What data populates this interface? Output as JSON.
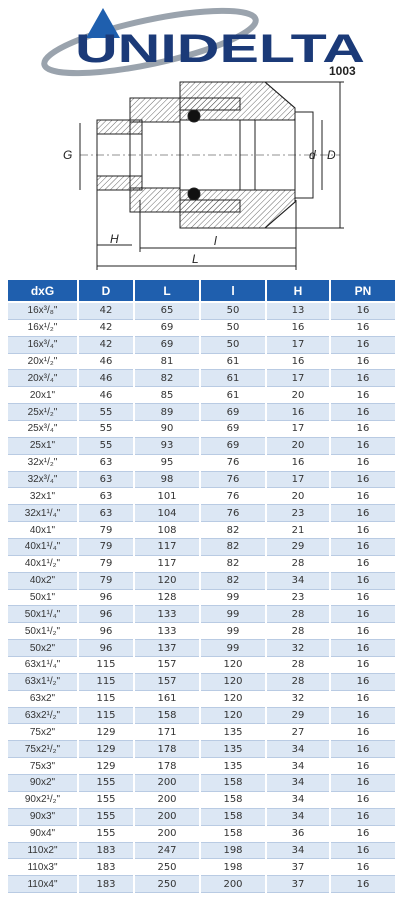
{
  "header": {
    "logo": "UNIDELTA",
    "code": "1003"
  },
  "drawing": {
    "labels": {
      "G": "G",
      "H": "H",
      "l": "l",
      "L": "L",
      "d": "d",
      "D": "D"
    }
  },
  "table": {
    "columns": [
      "dxG",
      "D",
      "L",
      "l",
      "H",
      "PN"
    ],
    "rows": [
      [
        "16x³/₈\"",
        "42",
        "65",
        "50",
        "13",
        "16"
      ],
      [
        "16x¹/₂\"",
        "42",
        "69",
        "50",
        "16",
        "16"
      ],
      [
        "16x³/₄\"",
        "42",
        "69",
        "50",
        "17",
        "16"
      ],
      [
        "20x¹/₂\"",
        "46",
        "81",
        "61",
        "16",
        "16"
      ],
      [
        "20x³/₄\"",
        "46",
        "82",
        "61",
        "17",
        "16"
      ],
      [
        "20x1\"",
        "46",
        "85",
        "61",
        "20",
        "16"
      ],
      [
        "25x¹/₂\"",
        "55",
        "89",
        "69",
        "16",
        "16"
      ],
      [
        "25x³/₄\"",
        "55",
        "90",
        "69",
        "17",
        "16"
      ],
      [
        "25x1\"",
        "55",
        "93",
        "69",
        "20",
        "16"
      ],
      [
        "32x¹/₂\"",
        "63",
        "95",
        "76",
        "16",
        "16"
      ],
      [
        "32x³/₄\"",
        "63",
        "98",
        "76",
        "17",
        "16"
      ],
      [
        "32x1\"",
        "63",
        "101",
        "76",
        "20",
        "16"
      ],
      [
        "32x1¹/₄\"",
        "63",
        "104",
        "76",
        "23",
        "16"
      ],
      [
        "40x1\"",
        "79",
        "108",
        "82",
        "21",
        "16"
      ],
      [
        "40x1¹/₄\"",
        "79",
        "117",
        "82",
        "29",
        "16"
      ],
      [
        "40x1¹/₂\"",
        "79",
        "117",
        "82",
        "28",
        "16"
      ],
      [
        "40x2\"",
        "79",
        "120",
        "82",
        "34",
        "16"
      ],
      [
        "50x1\"",
        "96",
        "128",
        "99",
        "23",
        "16"
      ],
      [
        "50x1¹/₄\"",
        "96",
        "133",
        "99",
        "28",
        "16"
      ],
      [
        "50x1¹/₂\"",
        "96",
        "133",
        "99",
        "28",
        "16"
      ],
      [
        "50x2\"",
        "96",
        "137",
        "99",
        "32",
        "16"
      ],
      [
        "63x1¹/₄\"",
        "115",
        "157",
        "120",
        "28",
        "16"
      ],
      [
        "63x1¹/₂\"",
        "115",
        "157",
        "120",
        "28",
        "16"
      ],
      [
        "63x2\"",
        "115",
        "161",
        "120",
        "32",
        "16"
      ],
      [
        "63x2¹/₂\"",
        "115",
        "158",
        "120",
        "29",
        "16"
      ],
      [
        "75x2\"",
        "129",
        "171",
        "135",
        "27",
        "16"
      ],
      [
        "75x2¹/₂\"",
        "129",
        "178",
        "135",
        "34",
        "16"
      ],
      [
        "75x3\"",
        "129",
        "178",
        "135",
        "34",
        "16"
      ],
      [
        "90x2\"",
        "155",
        "200",
        "158",
        "34",
        "16"
      ],
      [
        "90x2¹/₂\"",
        "155",
        "200",
        "158",
        "34",
        "16"
      ],
      [
        "90x3\"",
        "155",
        "200",
        "158",
        "34",
        "16"
      ],
      [
        "90x4\"",
        "155",
        "200",
        "158",
        "36",
        "16"
      ],
      [
        "110x2\"",
        "183",
        "247",
        "198",
        "34",
        "16"
      ],
      [
        "110x3\"",
        "183",
        "250",
        "198",
        "37",
        "16"
      ],
      [
        "110x4\"",
        "183",
        "250",
        "200",
        "37",
        "16"
      ]
    ]
  }
}
